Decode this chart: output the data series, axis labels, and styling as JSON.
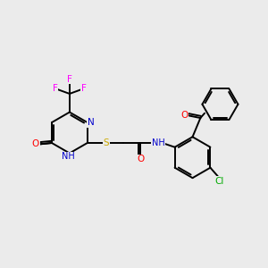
{
  "bg_color": "#ebebeb",
  "bond_color": "#000000",
  "colors": {
    "N": "#0000cc",
    "O": "#ff0000",
    "S": "#ccaa00",
    "F": "#ff00ff",
    "Cl": "#00aa00",
    "C": "#000000"
  },
  "lw": 1.4,
  "fontsize": 7.5
}
